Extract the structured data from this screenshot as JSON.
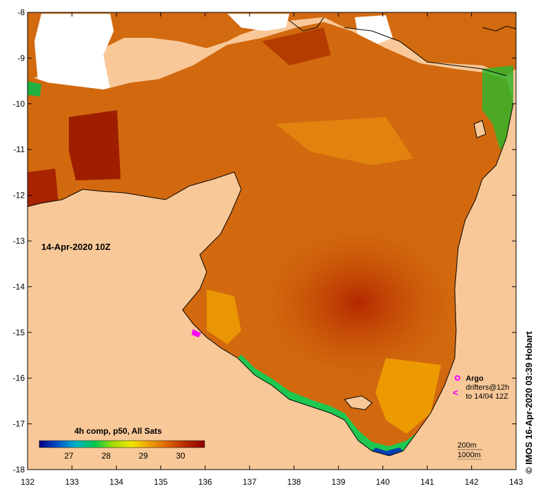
{
  "map": {
    "date_label": "14-Apr-2020 10Z",
    "lon_ticks": [
      "132",
      "133",
      "134",
      "135",
      "136",
      "137",
      "138",
      "139",
      "140",
      "141",
      "142",
      "143"
    ],
    "lat_ticks": [
      "-8",
      "-9",
      "-10",
      "-11",
      "-12",
      "-13",
      "-14",
      "-15",
      "-16",
      "-17",
      "-18"
    ],
    "lon_range": [
      132,
      143
    ],
    "lat_range": [
      -18,
      -8
    ]
  },
  "legend": {
    "title": "4h comp, p50, All Sats",
    "ticks": [
      "27",
      "28",
      "29",
      "30"
    ],
    "colors": [
      "#000080",
      "#0050c8",
      "#00b4c8",
      "#00c850",
      "#a0dc00",
      "#f0e600",
      "#f0a000",
      "#dc6400",
      "#b42800",
      "#8c0000"
    ]
  },
  "argo": {
    "label": "Argo",
    "drifter_line1": "drifters@12h",
    "drifter_line2": "to 14/04 12Z",
    "color": "#ff00ff"
  },
  "contours": {
    "line1": "200m",
    "line2": "1000m"
  },
  "credit": "© IMOS 16-Apr-2020 03:39 Hobart",
  "colors": {
    "land": "#f8c898",
    "coast": "#000000",
    "warm": "#d2690f",
    "hot": "#b41e00",
    "cool": "#1ec850"
  }
}
